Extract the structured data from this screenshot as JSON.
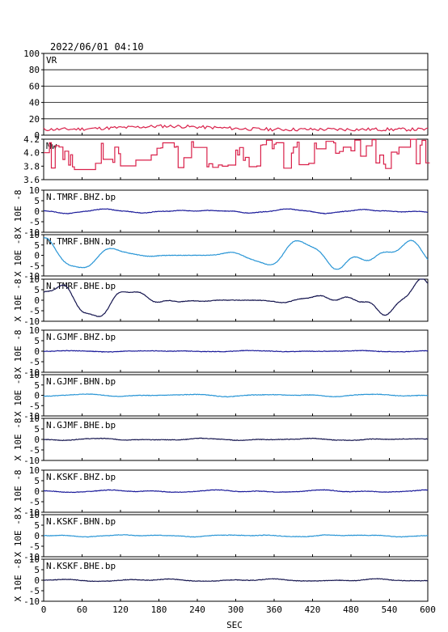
{
  "header": {
    "datetime": "2022/06/01  04:10"
  },
  "axes": {
    "xlabel": "SEC",
    "ylabel_unit": "X 10E -8",
    "xticks": [
      "0",
      "60",
      "120",
      "180",
      "240",
      "300",
      "360",
      "420",
      "480",
      "540",
      "600"
    ]
  },
  "colors": {
    "vr": "#d9204a",
    "mw": "#d9204a",
    "bhz": "#1a1a9a",
    "bhn": "#2a96d6",
    "bhe": "#15154f"
  },
  "chart_data": [
    {
      "type": "line",
      "name": "VR",
      "ylim": [
        0,
        100
      ],
      "yticks": [
        "0",
        "20",
        "40",
        "60",
        "80",
        "100"
      ],
      "grid": true,
      "color": "vr",
      "shape": "vr"
    },
    {
      "type": "line",
      "name": "Mw",
      "ylim": [
        3.6,
        4.2
      ],
      "yticks": [
        "3.6",
        "3.8",
        "4.0",
        "4.2"
      ],
      "grid": false,
      "color": "mw",
      "shape": "mw"
    },
    {
      "type": "line",
      "name": "N.TMRF.BHZ.bp",
      "ylim": [
        -10,
        10
      ],
      "yticks": [
        "-10",
        "-5",
        "0",
        "5",
        "10"
      ],
      "color": "bhz",
      "amp": 1.0,
      "seed": 1
    },
    {
      "type": "line",
      "name": "N.TMRF.BHN.bp",
      "ylim": [
        -10,
        10
      ],
      "yticks": [
        "-10",
        "-5",
        "0",
        "5",
        "10"
      ],
      "color": "bhn",
      "amp": 11.0,
      "seed": 2
    },
    {
      "type": "line",
      "name": "N.TMRF.BHE.bp",
      "ylim": [
        -10,
        10
      ],
      "yticks": [
        "-10",
        "-5",
        "0",
        "5",
        "10"
      ],
      "color": "bhe",
      "amp": 9.0,
      "seed": 3
    },
    {
      "type": "line",
      "name": "N.GJMF.BHZ.bp",
      "ylim": [
        -10,
        10
      ],
      "yticks": [
        "-10",
        "-5",
        "0",
        "5",
        "10"
      ],
      "color": "bhz",
      "amp": 0.3,
      "seed": 4
    },
    {
      "type": "line",
      "name": "N.GJMF.BHN.bp",
      "ylim": [
        -10,
        10
      ],
      "yticks": [
        "-10",
        "-5",
        "0",
        "5",
        "10"
      ],
      "color": "bhn",
      "amp": 0.6,
      "seed": 5
    },
    {
      "type": "line",
      "name": "N.GJMF.BHE.bp",
      "ylim": [
        -10,
        10
      ],
      "yticks": [
        "-10",
        "-5",
        "0",
        "5",
        "10"
      ],
      "color": "bhe",
      "amp": 0.5,
      "seed": 6
    },
    {
      "type": "line",
      "name": "N.KSKF.BHZ.bp",
      "ylim": [
        -10,
        10
      ],
      "yticks": [
        "-10",
        "-5",
        "0",
        "5",
        "10"
      ],
      "color": "bhz",
      "amp": 0.6,
      "seed": 7
    },
    {
      "type": "line",
      "name": "N.KSKF.BHN.bp",
      "ylim": [
        -10,
        10
      ],
      "yticks": [
        "-10",
        "-5",
        "0",
        "5",
        "10"
      ],
      "color": "bhn",
      "amp": 0.5,
      "seed": 8
    },
    {
      "type": "line",
      "name": "N.KSKF.BHE.bp",
      "ylim": [
        -10,
        10
      ],
      "yticks": [
        "-10",
        "-5",
        "0",
        "5",
        "10"
      ],
      "color": "bhe",
      "amp": 0.6,
      "seed": 9
    }
  ]
}
